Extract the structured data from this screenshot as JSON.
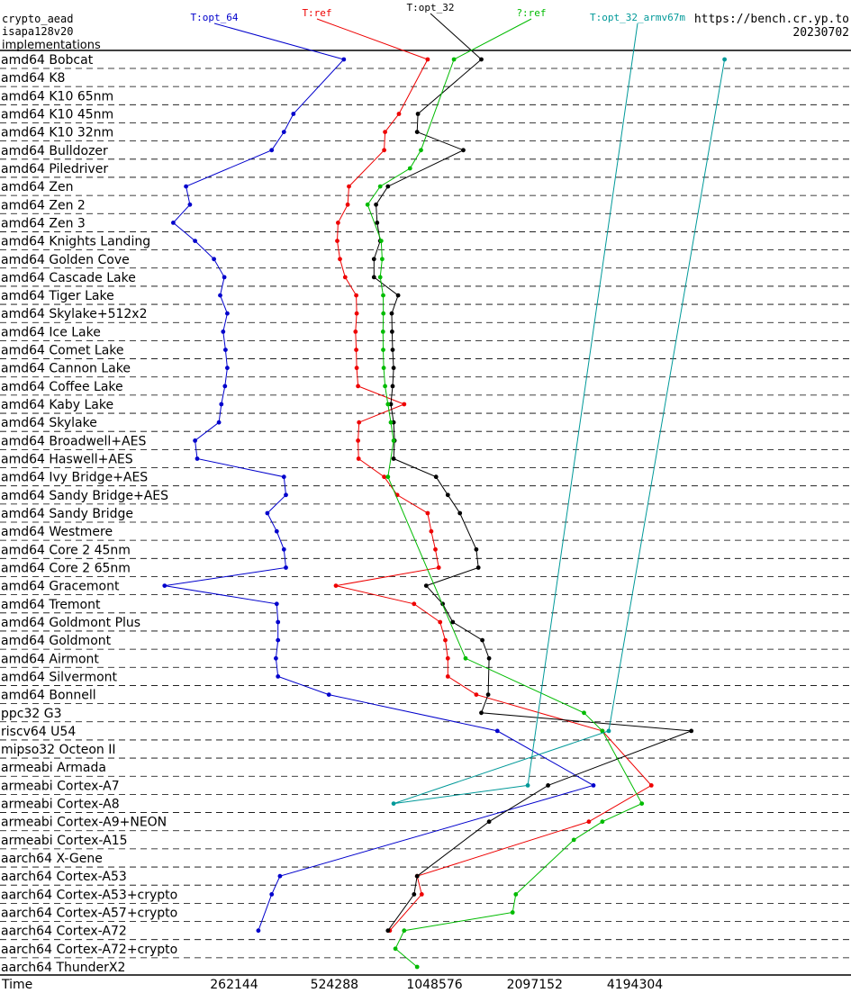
{
  "header": {
    "line1": "crypto_aead",
    "line2": "isapa128v20",
    "line3": "implementations",
    "site": "https://bench.cr.yp.to",
    "date": "20230702"
  },
  "chart_data": {
    "type": "line",
    "x_axis": {
      "label": "Time",
      "scale": "log2",
      "ticks": [
        262144,
        524288,
        1048576,
        2097152,
        4194304
      ],
      "range": [
        90000,
        7800000
      ]
    },
    "categories": [
      "amd64 Bobcat",
      "amd64 K8",
      "amd64 K10 65nm",
      "amd64 K10 45nm",
      "amd64 K10 32nm",
      "amd64 Bulldozer",
      "amd64 Piledriver",
      "amd64 Zen",
      "amd64 Zen 2",
      "amd64 Zen 3",
      "amd64 Knights Landing",
      "amd64 Golden Cove",
      "amd64 Cascade Lake",
      "amd64 Tiger Lake",
      "amd64 Skylake+512x2",
      "amd64 Ice Lake",
      "amd64 Comet Lake",
      "amd64 Cannon Lake",
      "amd64 Coffee Lake",
      "amd64 Kaby Lake",
      "amd64 Skylake",
      "amd64 Broadwell+AES",
      "amd64 Haswell+AES",
      "amd64 Ivy Bridge+AES",
      "amd64 Sandy Bridge+AES",
      "amd64 Sandy Bridge",
      "amd64 Westmere",
      "amd64 Core 2 45nm",
      "amd64 Core 2 65nm",
      "amd64 Gracemont",
      "amd64 Tremont",
      "amd64 Goldmont Plus",
      "amd64 Goldmont",
      "amd64 Airmont",
      "amd64 Silvermont",
      "amd64 Bonnell",
      "ppc32 G3",
      "riscv64 U54",
      "mipso32 Octeon II",
      "armeabi Armada",
      "armeabi Cortex-A7",
      "armeabi Cortex-A8",
      "armeabi Cortex-A9+NEON",
      "armeabi Cortex-A15",
      "aarch64 X-Gene",
      "aarch64 Cortex-A53",
      "aarch64 Cortex-A53+crypto",
      "aarch64 Cortex-A57+crypto",
      "aarch64 Cortex-A72",
      "aarch64 Cortex-A72+crypto",
      "aarch64 ThunderX2"
    ],
    "series": [
      {
        "name": "T:opt_64",
        "color": "#0000cc",
        "points": [
          [
            0,
            560000
          ],
          [
            3,
            395000
          ],
          [
            4,
            370000
          ],
          [
            5,
            340000
          ],
          [
            7,
            188000
          ],
          [
            8,
            193000
          ],
          [
            9,
            172000
          ],
          [
            10,
            200000
          ],
          [
            11,
            228000
          ],
          [
            12,
            245000
          ],
          [
            13,
            238000
          ],
          [
            14,
            250000
          ],
          [
            15,
            243000
          ],
          [
            16,
            247000
          ],
          [
            17,
            250000
          ],
          [
            18,
            246000
          ],
          [
            19,
            240000
          ],
          [
            20,
            236000
          ],
          [
            21,
            200000
          ],
          [
            22,
            203000
          ],
          [
            23,
            370000
          ],
          [
            24,
            375000
          ],
          [
            25,
            330000
          ],
          [
            26,
            352000
          ],
          [
            27,
            370000
          ],
          [
            28,
            375000
          ],
          [
            29,
            162000
          ],
          [
            30,
            352000
          ],
          [
            31,
            355000
          ],
          [
            32,
            355000
          ],
          [
            33,
            350000
          ],
          [
            34,
            355000
          ],
          [
            35,
            505000
          ],
          [
            37,
            1620000
          ],
          [
            40,
            3150000
          ],
          [
            45,
            360000
          ],
          [
            46,
            340000
          ],
          [
            48,
            310000
          ]
        ]
      },
      {
        "name": "T:ref",
        "color": "#ee0000",
        "points": [
          [
            0,
            1000000
          ],
          [
            3,
            820000
          ],
          [
            4,
            745000
          ],
          [
            5,
            740000
          ],
          [
            7,
            580000
          ],
          [
            8,
            575000
          ],
          [
            9,
            538000
          ],
          [
            10,
            535000
          ],
          [
            11,
            545000
          ],
          [
            12,
            565000
          ],
          [
            13,
            610000
          ],
          [
            14,
            612000
          ],
          [
            15,
            607000
          ],
          [
            16,
            610000
          ],
          [
            17,
            612000
          ],
          [
            18,
            618000
          ],
          [
            19,
            850000
          ],
          [
            20,
            622000
          ],
          [
            21,
            618000
          ],
          [
            22,
            620000
          ],
          [
            23,
            740000
          ],
          [
            24,
            810000
          ],
          [
            25,
            1000000
          ],
          [
            26,
            1025000
          ],
          [
            27,
            1055000
          ],
          [
            28,
            1080000
          ],
          [
            29,
            530000
          ],
          [
            30,
            910000
          ],
          [
            31,
            1090000
          ],
          [
            32,
            1130000
          ],
          [
            33,
            1150000
          ],
          [
            34,
            1150000
          ],
          [
            35,
            1400000
          ],
          [
            37,
            3350000
          ],
          [
            40,
            4700000
          ],
          [
            42,
            3050000
          ],
          [
            45,
            930000
          ],
          [
            46,
            960000
          ],
          [
            48,
            770000
          ]
        ]
      },
      {
        "name": "T:opt_32",
        "color": "#000000",
        "points": [
          [
            0,
            1450000
          ],
          [
            3,
            935000
          ],
          [
            4,
            930000
          ],
          [
            5,
            1280000
          ],
          [
            7,
            760000
          ],
          [
            8,
            700000
          ],
          [
            9,
            705000
          ],
          [
            10,
            720000
          ],
          [
            11,
            690000
          ],
          [
            12,
            690000
          ],
          [
            13,
            815000
          ],
          [
            14,
            780000
          ],
          [
            15,
            782000
          ],
          [
            16,
            785000
          ],
          [
            17,
            790000
          ],
          [
            18,
            785000
          ],
          [
            19,
            775000
          ],
          [
            20,
            790000
          ],
          [
            21,
            795000
          ],
          [
            22,
            790000
          ],
          [
            23,
            1060000
          ],
          [
            24,
            1150000
          ],
          [
            25,
            1250000
          ],
          [
            27,
            1400000
          ],
          [
            28,
            1420000
          ],
          [
            29,
            990000
          ],
          [
            30,
            1110000
          ],
          [
            31,
            1190000
          ],
          [
            32,
            1460000
          ],
          [
            33,
            1530000
          ],
          [
            35,
            1520000
          ],
          [
            36,
            1450000
          ],
          [
            37,
            6200000
          ],
          [
            40,
            2300000
          ],
          [
            42,
            1530000
          ],
          [
            45,
            930000
          ],
          [
            46,
            910000
          ],
          [
            48,
            760000
          ]
        ]
      },
      {
        "name": "?:ref",
        "color": "#00bb00",
        "points": [
          [
            0,
            1200000
          ],
          [
            5,
            955000
          ],
          [
            6,
            885000
          ],
          [
            7,
            720000
          ],
          [
            8,
            660000
          ],
          [
            10,
            725000
          ],
          [
            11,
            730000
          ],
          [
            12,
            720000
          ],
          [
            13,
            735000
          ],
          [
            14,
            736000
          ],
          [
            15,
            734000
          ],
          [
            16,
            735000
          ],
          [
            17,
            738000
          ],
          [
            18,
            745000
          ],
          [
            19,
            760000
          ],
          [
            20,
            775000
          ],
          [
            21,
            790000
          ],
          [
            23,
            760000
          ],
          [
            33,
            1300000
          ],
          [
            36,
            2950000
          ],
          [
            37,
            3350000
          ],
          [
            41,
            4400000
          ],
          [
            42,
            3350000
          ],
          [
            43,
            2750000
          ],
          [
            46,
            1840000
          ],
          [
            47,
            1800000
          ],
          [
            48,
            850000
          ],
          [
            49,
            800000
          ],
          [
            50,
            930000
          ]
        ]
      },
      {
        "name": "T:opt_32_armv67m",
        "color": "#009999",
        "points": [
          [
            40,
            2000000
          ],
          [
            41,
            790000
          ],
          [
            37,
            3500000
          ],
          [
            0,
            7800000
          ]
        ]
      }
    ]
  }
}
